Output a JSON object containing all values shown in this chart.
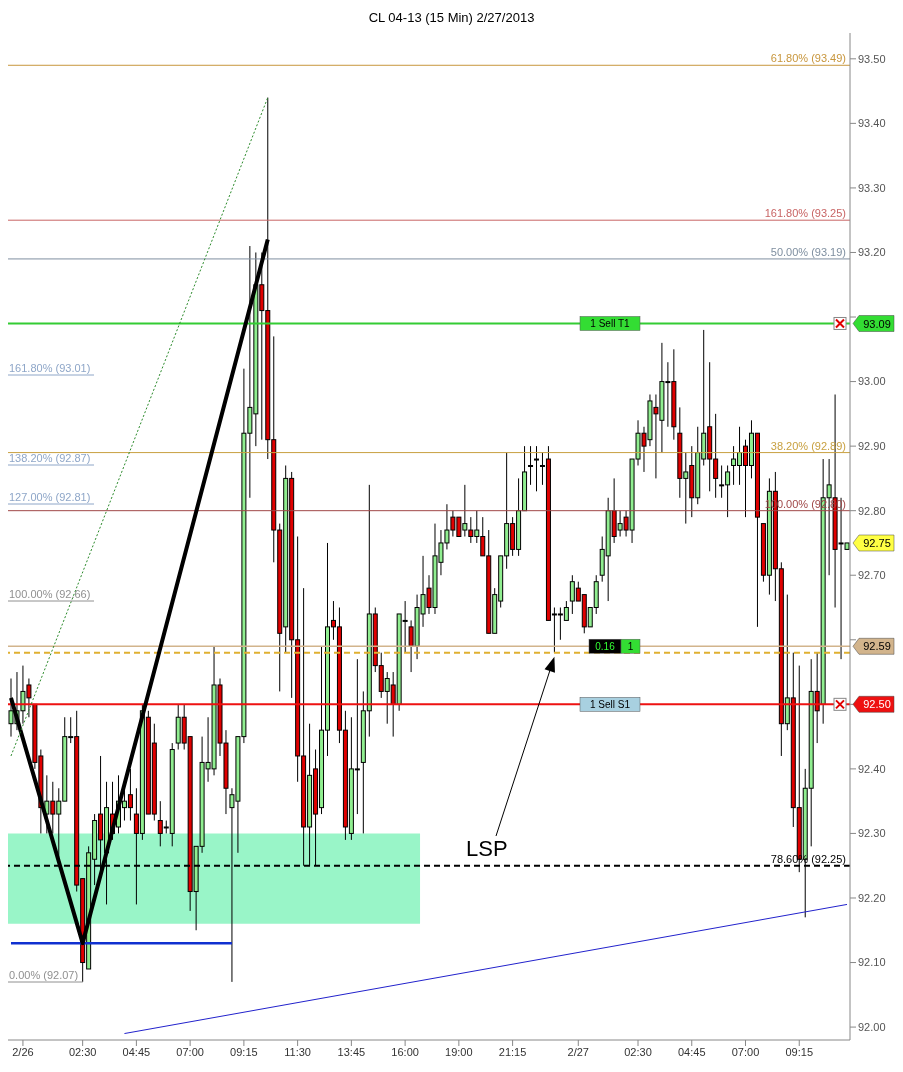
{
  "chart_data": {
    "type": "candlestick",
    "title": "CL 04-13 (15 Min)  2/27/2013",
    "categories": [
      null,
      null,
      "2/26",
      null,
      null,
      null,
      null,
      null,
      null,
      null,
      null,
      null,
      "02:30",
      null,
      null,
      null,
      null,
      null,
      null,
      null,
      null,
      "04:45",
      null,
      null,
      null,
      null,
      null,
      null,
      null,
      null,
      "07:00",
      null,
      null,
      null,
      null,
      null,
      null,
      null,
      null,
      "09:15",
      null,
      null,
      null,
      null,
      null,
      null,
      null,
      null,
      "11:30",
      null,
      null,
      null,
      null,
      null,
      null,
      null,
      null,
      "13:45",
      null,
      null,
      null,
      null,
      null,
      null,
      null,
      null,
      "16:00",
      null,
      null,
      null,
      null,
      null,
      null,
      null,
      null,
      "19:00",
      null,
      null,
      null,
      null,
      null,
      null,
      null,
      null,
      "21:15",
      null,
      null,
      null,
      null,
      null,
      null,
      null,
      null,
      null,
      null,
      "2/27",
      null,
      null,
      null,
      null,
      null,
      null,
      null,
      null,
      null,
      "02:30",
      null,
      null,
      null,
      null,
      null,
      null,
      null,
      null,
      "04:45",
      null,
      null,
      null,
      null,
      null,
      null,
      null,
      null,
      "07:00",
      null,
      null,
      null,
      null,
      null,
      null,
      null,
      null,
      "09:15",
      null,
      null,
      null,
      null,
      null,
      null,
      null,
      null
    ],
    "ohlc": [
      [
        92.47,
        92.54,
        92.45,
        92.49
      ],
      [
        92.47,
        92.55,
        92.46,
        92.49
      ],
      [
        92.49,
        92.56,
        92.47,
        92.52
      ],
      [
        92.53,
        92.54,
        92.48,
        92.51
      ],
      [
        92.5,
        92.5,
        92.4,
        92.41
      ],
      [
        92.42,
        92.43,
        92.3,
        92.34
      ],
      [
        92.33,
        92.39,
        92.3,
        92.35
      ],
      [
        92.35,
        92.38,
        92.3,
        92.33
      ],
      [
        92.33,
        92.37,
        92.25,
        92.35
      ],
      [
        92.35,
        92.48,
        92.35,
        92.45
      ],
      [
        92.45,
        92.48,
        92.44,
        92.45
      ],
      [
        92.45,
        92.49,
        92.21,
        92.22
      ],
      [
        92.23,
        92.23,
        92.07,
        92.1
      ],
      [
        92.09,
        92.28,
        92.09,
        92.27
      ],
      [
        92.26,
        92.33,
        92.22,
        92.32
      ],
      [
        92.33,
        92.42,
        92.24,
        92.29
      ],
      [
        92.27,
        92.38,
        92.19,
        92.34
      ],
      [
        92.33,
        92.38,
        92.29,
        92.3
      ],
      [
        92.31,
        92.39,
        92.3,
        92.35
      ],
      [
        92.34,
        92.38,
        92.32,
        92.35
      ],
      [
        92.36,
        92.4,
        92.32,
        92.34
      ],
      [
        92.33,
        92.37,
        92.19,
        92.3
      ],
      [
        92.3,
        92.5,
        92.29,
        92.49
      ],
      [
        92.48,
        92.49,
        92.33,
        92.33
      ],
      [
        92.44,
        92.47,
        92.32,
        92.33
      ],
      [
        92.32,
        92.35,
        92.28,
        92.3
      ],
      [
        92.31,
        92.32,
        92.3,
        92.31
      ],
      [
        92.3,
        92.44,
        92.28,
        92.43
      ],
      [
        92.44,
        92.5,
        92.43,
        92.48
      ],
      [
        92.48,
        92.5,
        92.43,
        92.44
      ],
      [
        92.45,
        92.45,
        92.18,
        92.21
      ],
      [
        92.21,
        92.28,
        92.15,
        92.28
      ],
      [
        92.28,
        92.45,
        92.27,
        92.41
      ],
      [
        92.4,
        92.48,
        92.38,
        92.41
      ],
      [
        92.4,
        92.59,
        92.39,
        92.53
      ],
      [
        92.53,
        92.54,
        92.42,
        92.44
      ],
      [
        92.44,
        92.46,
        92.33,
        92.37
      ],
      [
        92.34,
        92.37,
        92.07,
        92.36
      ],
      [
        92.35,
        92.45,
        92.27,
        92.45
      ],
      [
        92.45,
        93.02,
        92.44,
        92.92
      ],
      [
        92.92,
        93.21,
        92.82,
        92.96
      ],
      [
        92.95,
        93.2,
        92.9,
        93.15
      ],
      [
        93.15,
        93.2,
        92.91,
        93.11
      ],
      [
        93.11,
        93.44,
        92.88,
        92.91
      ],
      [
        92.91,
        93.07,
        92.72,
        92.77
      ],
      [
        92.77,
        92.78,
        92.52,
        92.61
      ],
      [
        92.62,
        92.87,
        92.58,
        92.85
      ],
      [
        92.85,
        92.86,
        92.51,
        92.6
      ],
      [
        92.6,
        92.76,
        92.38,
        92.42
      ],
      [
        92.42,
        92.68,
        92.25,
        92.31
      ],
      [
        92.31,
        92.47,
        92.25,
        92.39
      ],
      [
        92.4,
        92.43,
        92.25,
        92.33
      ],
      [
        92.34,
        92.59,
        92.33,
        92.46
      ],
      [
        92.46,
        92.75,
        92.42,
        92.62
      ],
      [
        92.63,
        92.66,
        92.6,
        92.62
      ],
      [
        92.62,
        92.65,
        92.44,
        92.46
      ],
      [
        92.46,
        92.49,
        92.29,
        92.31
      ],
      [
        92.3,
        92.48,
        92.29,
        92.4
      ],
      [
        92.4,
        92.57,
        92.33,
        92.4
      ],
      [
        92.41,
        92.52,
        92.3,
        92.49
      ],
      [
        92.49,
        92.84,
        92.45,
        92.64
      ],
      [
        92.64,
        92.65,
        92.55,
        92.56
      ],
      [
        92.56,
        92.58,
        92.51,
        92.52
      ],
      [
        92.52,
        92.55,
        92.47,
        92.54
      ],
      [
        92.53,
        92.55,
        92.45,
        92.5
      ],
      [
        92.5,
        92.64,
        92.49,
        92.64
      ],
      [
        92.63,
        92.66,
        92.58,
        92.63
      ],
      [
        92.62,
        92.63,
        92.55,
        92.59
      ],
      [
        92.59,
        92.67,
        92.57,
        92.65
      ],
      [
        92.64,
        92.73,
        92.62,
        92.67
      ],
      [
        92.68,
        92.7,
        92.64,
        92.65
      ],
      [
        92.65,
        92.78,
        92.64,
        92.73
      ],
      [
        92.72,
        92.77,
        92.7,
        92.75
      ],
      [
        92.75,
        92.81,
        92.74,
        92.77
      ],
      [
        92.79,
        92.8,
        92.76,
        92.77
      ],
      [
        92.79,
        92.79,
        92.76,
        92.76
      ],
      [
        92.77,
        92.84,
        92.76,
        92.78
      ],
      [
        92.77,
        92.79,
        92.75,
        92.76
      ],
      [
        92.76,
        92.8,
        92.75,
        92.77
      ],
      [
        92.76,
        92.79,
        92.73,
        92.73
      ],
      [
        92.73,
        92.77,
        92.61,
        92.61
      ],
      [
        92.61,
        92.68,
        92.61,
        92.67
      ],
      [
        92.66,
        92.73,
        92.65,
        92.73
      ],
      [
        92.73,
        92.89,
        92.71,
        92.78
      ],
      [
        92.78,
        92.79,
        92.73,
        92.74
      ],
      [
        92.74,
        92.85,
        92.73,
        92.8
      ],
      [
        92.8,
        92.9,
        92.8,
        92.86
      ],
      [
        92.87,
        92.9,
        92.84,
        92.87
      ],
      [
        92.88,
        92.9,
        92.83,
        92.88
      ],
      [
        92.87,
        92.89,
        92.84,
        92.87
      ],
      [
        92.88,
        92.9,
        92.63,
        92.63
      ],
      [
        92.64,
        92.65,
        92.58,
        92.64
      ],
      [
        92.64,
        92.65,
        92.6,
        92.64
      ],
      [
        92.63,
        92.66,
        92.63,
        92.65
      ],
      [
        92.66,
        92.7,
        92.64,
        92.69
      ],
      [
        92.68,
        92.69,
        92.66,
        92.66
      ],
      [
        92.67,
        92.67,
        92.61,
        92.62
      ],
      [
        92.62,
        92.65,
        92.62,
        92.65
      ],
      [
        92.65,
        92.7,
        92.64,
        92.69
      ],
      [
        92.7,
        92.76,
        92.69,
        92.74
      ],
      [
        92.73,
        92.82,
        92.66,
        92.8
      ],
      [
        92.8,
        92.85,
        92.75,
        92.76
      ],
      [
        92.77,
        92.8,
        92.76,
        92.78
      ],
      [
        92.79,
        92.8,
        92.76,
        92.77
      ],
      [
        92.77,
        92.88,
        92.75,
        92.88
      ],
      [
        92.88,
        92.94,
        92.87,
        92.92
      ],
      [
        92.92,
        92.93,
        92.86,
        92.9
      ],
      [
        92.91,
        92.98,
        92.9,
        92.97
      ],
      [
        92.96,
        92.98,
        92.85,
        92.95
      ],
      [
        92.94,
        93.06,
        92.89,
        93.0
      ],
      [
        93.0,
        93.03,
        92.93,
        93.0
      ],
      [
        93.0,
        93.05,
        92.91,
        92.93
      ],
      [
        92.92,
        92.96,
        92.82,
        92.85
      ],
      [
        92.85,
        92.89,
        92.78,
        92.86
      ],
      [
        92.87,
        92.9,
        92.79,
        92.82
      ],
      [
        92.82,
        92.93,
        92.81,
        92.89
      ],
      [
        92.88,
        93.08,
        92.87,
        92.92
      ],
      [
        92.93,
        93.03,
        92.83,
        92.88
      ],
      [
        92.88,
        92.95,
        92.82,
        92.85
      ],
      [
        92.84,
        92.87,
        92.82,
        92.84
      ],
      [
        92.84,
        92.87,
        92.79,
        92.86
      ],
      [
        92.87,
        92.9,
        92.84,
        92.88
      ],
      [
        92.87,
        92.93,
        92.84,
        92.89
      ],
      [
        92.9,
        92.91,
        92.79,
        92.87
      ],
      [
        92.87,
        92.94,
        92.85,
        92.92
      ],
      [
        92.92,
        92.92,
        92.62,
        92.79
      ],
      [
        92.78,
        92.78,
        92.69,
        92.7
      ],
      [
        92.7,
        92.85,
        92.67,
        92.83
      ],
      [
        92.83,
        92.86,
        92.66,
        92.71
      ],
      [
        92.71,
        92.72,
        92.42,
        92.47
      ],
      [
        92.47,
        92.67,
        92.46,
        92.51
      ],
      [
        92.51,
        92.58,
        92.31,
        92.34
      ],
      [
        92.34,
        92.56,
        92.24,
        92.26
      ],
      [
        92.26,
        92.4,
        92.17,
        92.37
      ],
      [
        92.37,
        92.57,
        92.28,
        92.52
      ],
      [
        92.52,
        92.58,
        92.44,
        92.49
      ],
      [
        92.5,
        92.88,
        92.47,
        92.82
      ],
      [
        92.82,
        92.88,
        92.7,
        92.84
      ],
      [
        92.82,
        92.98,
        92.65,
        92.74
      ],
      [
        92.75,
        92.82,
        92.57,
        92.75
      ],
      [
        92.74,
        92.75,
        92.74,
        92.75
      ]
    ],
    "series": [
      {
        "type": "line",
        "color": "#000000",
        "line_style": "solid",
        "values": [
          92.51,
          null,
          null,
          null,
          null,
          null,
          null,
          null,
          null,
          null,
          null,
          null,
          92.13,
          null,
          null,
          null,
          null,
          null,
          null,
          null,
          null,
          null,
          null,
          null,
          null,
          null,
          null,
          null,
          null,
          null,
          null,
          null,
          null,
          null,
          null,
          null,
          null,
          null,
          null,
          null,
          null,
          null,
          null,
          93.22,
          null,
          null,
          null,
          null,
          null,
          null,
          null,
          null,
          null,
          null,
          null,
          null,
          null,
          null,
          null,
          null,
          null,
          null,
          null,
          null,
          null,
          null,
          null,
          null,
          null,
          null,
          null,
          null,
          null,
          null,
          null,
          null,
          null,
          null,
          null,
          null,
          null,
          null,
          null,
          null,
          null,
          null,
          null,
          null,
          null,
          null,
          null,
          null,
          null,
          null,
          null,
          null,
          null,
          null,
          null,
          null,
          null,
          null,
          null,
          null,
          null,
          null,
          null,
          null,
          null,
          null,
          null,
          null,
          null,
          null,
          null,
          null,
          null,
          null,
          null,
          null,
          null,
          null,
          null,
          null,
          null,
          null,
          null,
          null,
          null,
          null,
          null,
          null,
          null,
          null,
          null,
          null,
          null,
          null,
          null,
          null,
          null
        ]
      },
      {
        "type": "line",
        "color": "#2a8a2a",
        "line_style": "dotted",
        "values": [
          92.42,
          null,
          null,
          null,
          null,
          null,
          null,
          null,
          null,
          null,
          null,
          null,
          null,
          null,
          null,
          null,
          null,
          null,
          null,
          null,
          null,
          null,
          null,
          null,
          null,
          null,
          null,
          null,
          null,
          null,
          null,
          null,
          null,
          null,
          null,
          null,
          null,
          null,
          null,
          null,
          null,
          null,
          null,
          93.44,
          null,
          null,
          null,
          null,
          null,
          null,
          null,
          null,
          null,
          null,
          null,
          null,
          null,
          null,
          null,
          null,
          null,
          null,
          null,
          null,
          null,
          null,
          null,
          null,
          null,
          null,
          null,
          null,
          null,
          null,
          null,
          null,
          null,
          null,
          null,
          null,
          null,
          null,
          null,
          null,
          null,
          null,
          null,
          null,
          null,
          null,
          null,
          null,
          null,
          null,
          null,
          null,
          null,
          null,
          null,
          null,
          null,
          null,
          null,
          null,
          null,
          null,
          null,
          null,
          null,
          null,
          null,
          null,
          null,
          null,
          null,
          null,
          null,
          null,
          null,
          null,
          null,
          null,
          null,
          null,
          null,
          null,
          null,
          null,
          null,
          null,
          null,
          null,
          null,
          null,
          null,
          null,
          null,
          null,
          null,
          null,
          null
        ]
      },
      {
        "type": "line",
        "color": "#2222cc",
        "line_style": "solid",
        "values": [
          null,
          null,
          null,
          null,
          null,
          null,
          null,
          null,
          null,
          null,
          null,
          null,
          null,
          null,
          null,
          null,
          null,
          null,
          null,
          91.99,
          null,
          null,
          null,
          null,
          null,
          null,
          null,
          null,
          null,
          null,
          null,
          null,
          null,
          null,
          null,
          null,
          null,
          null,
          null,
          null,
          null,
          null,
          null,
          null,
          null,
          null,
          null,
          null,
          null,
          null,
          null,
          null,
          null,
          null,
          null,
          null,
          null,
          null,
          null,
          null,
          null,
          null,
          null,
          null,
          null,
          null,
          null,
          null,
          null,
          null,
          null,
          null,
          null,
          null,
          null,
          null,
          null,
          null,
          null,
          null,
          null,
          null,
          null,
          null,
          null,
          null,
          null,
          null,
          null,
          null,
          null,
          null,
          null,
          null,
          null,
          null,
          null,
          null,
          null,
          null,
          null,
          null,
          null,
          null,
          null,
          null,
          null,
          null,
          null,
          null,
          null,
          null,
          null,
          null,
          null,
          null,
          null,
          null,
          null,
          null,
          null,
          null,
          null,
          null,
          null,
          null,
          null,
          null,
          null,
          null,
          null,
          null,
          null,
          null,
          null,
          null,
          null,
          null,
          null,
          null,
          92.19
        ]
      }
    ],
    "marker": "none",
    "ylim": [
      91.98,
      93.54
    ],
    "yticks": [
      {
        "value": 92,
        "label": "92.00"
      },
      {
        "value": 92.1,
        "label": "92.10"
      },
      {
        "value": 92.2,
        "label": "92.20"
      },
      {
        "value": 92.3,
        "label": "92.30"
      },
      {
        "value": 92.4,
        "label": "92.40"
      },
      {
        "value": 92.5,
        "label": null
      },
      {
        "value": 92.6,
        "label": null
      },
      {
        "value": 92.7,
        "label": "92.70"
      },
      {
        "value": 92.8,
        "label": "92.80"
      },
      {
        "value": 92.9,
        "label": "92.90"
      },
      {
        "value": 93,
        "label": "93.00"
      },
      {
        "value": 93.1,
        "label": null
      },
      {
        "value": 93.2,
        "label": "93.20"
      },
      {
        "value": 93.3,
        "label": "93.30"
      },
      {
        "value": 93.4,
        "label": "93.40"
      },
      {
        "value": 93.5,
        "label": "93.50"
      }
    ],
    "ref_lines": [
      {
        "axis": "y",
        "value": 93.49,
        "label": "61.80% (93.49)",
        "color": "#c8963c"
      },
      {
        "axis": "y",
        "value": 93.25,
        "label": "161.80% (93.25)",
        "color": "#c86464"
      },
      {
        "axis": "y",
        "value": 93.19,
        "label": "50.00% (93.19)",
        "color": "#7f8fa0"
      },
      {
        "axis": "y",
        "value": 93.09,
        "color": "#33cc33"
      },
      {
        "axis": "y",
        "value": 92.89,
        "label": "38.20% (92.89)",
        "color": "#c8a040"
      },
      {
        "axis": "y",
        "value": 92.8,
        "label": "100.00% (92.80)",
        "color": "#a04848"
      },
      {
        "axis": "y",
        "value": 92.59,
        "color": "#d2b48c"
      },
      {
        "axis": "y",
        "value": 92.58,
        "color": "#e0b030",
        "line_style": "dashed"
      },
      {
        "axis": "y",
        "value": 92.5,
        "color": "#ee1111"
      },
      {
        "axis": "y",
        "value": 92.25,
        "label": "78.60% (92.25)",
        "color": "#000000",
        "line_style": "dashed"
      },
      {
        "axis": "y",
        "value": 92.13,
        "color": "#1030d0"
      }
    ],
    "bands": [
      {
        "axis": "y",
        "from": 92.16,
        "to": 92.3,
        "color": "#99f5c8"
      }
    ],
    "annotations": [
      "161.80% (93.01)",
      "138.20% (92.87)",
      "127.00% (92.81)",
      "100.00% (92.66)",
      "0.00% (92.07)",
      {
        "text": "1 Sell T1",
        "y": 93.09
      },
      {
        "text": "0.16",
        "y": 92.59
      },
      {
        "text": "1",
        "y": 92.59
      },
      {
        "text": "1 Sell S1",
        "y": 92.5
      },
      "93.09",
      "92.59",
      "92.50",
      "92.75",
      "LSP"
    ]
  }
}
